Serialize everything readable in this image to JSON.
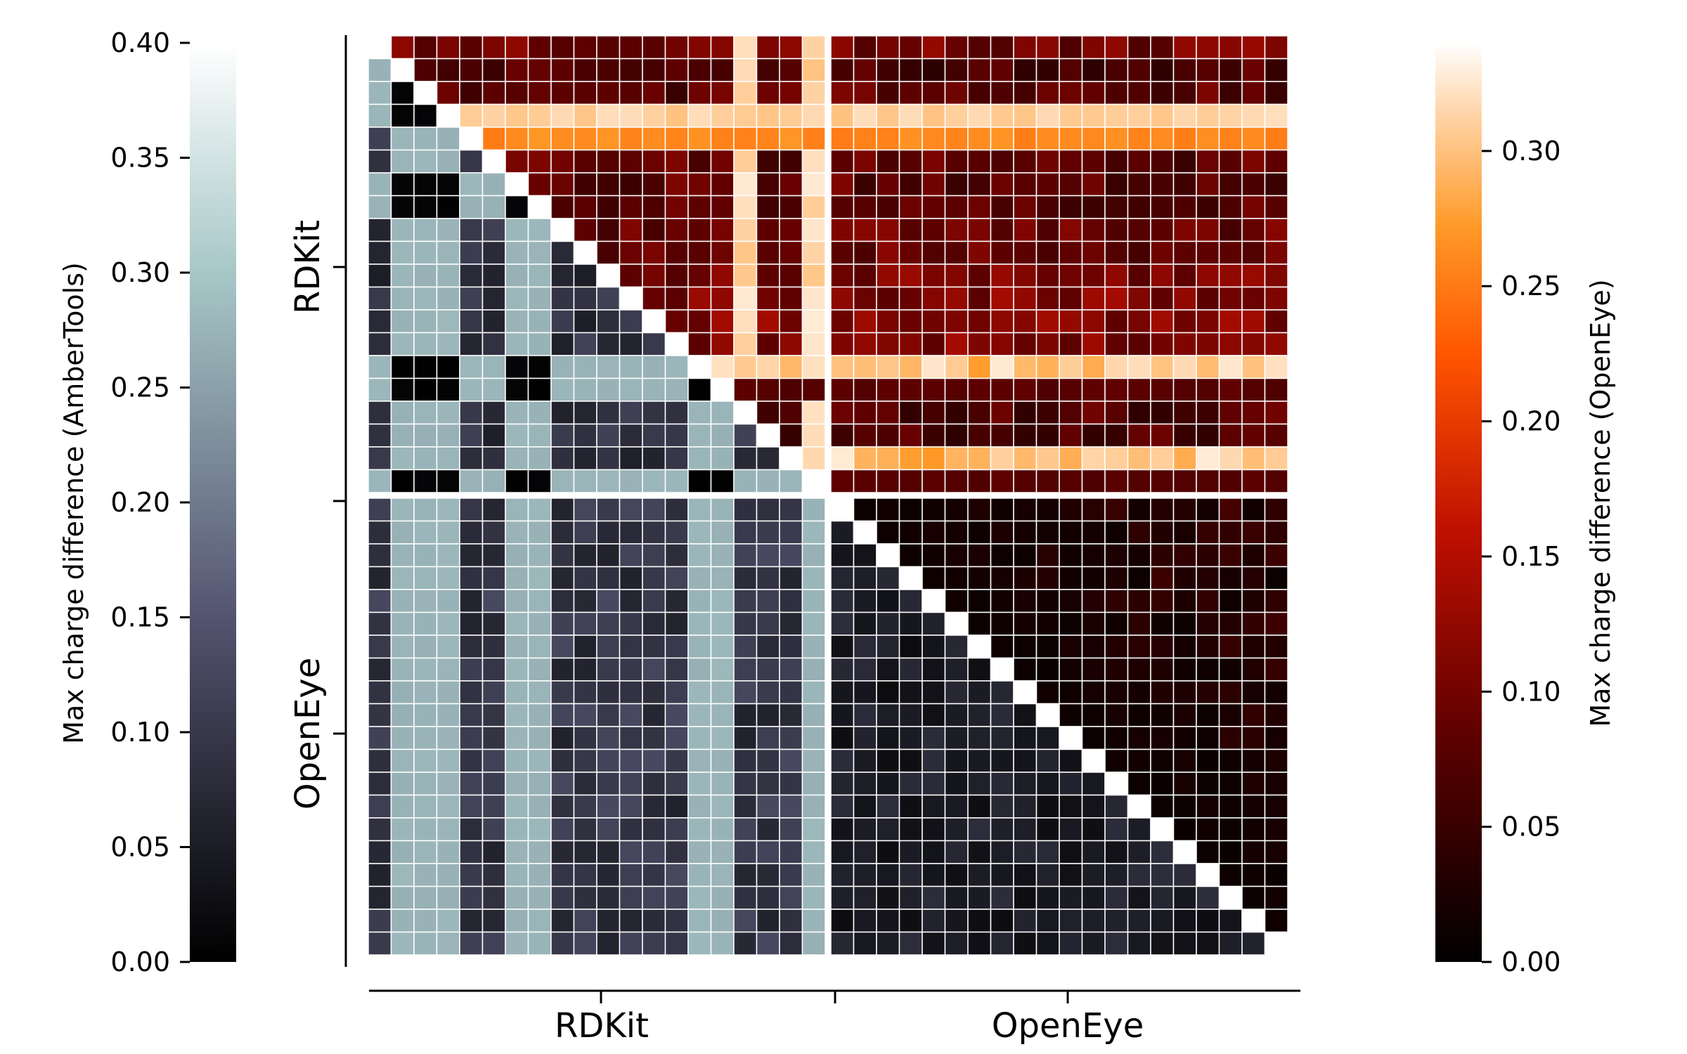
{
  "chart_data": {
    "type": "heatmap",
    "description_groups": [
      "RDKit",
      "OpenEye"
    ],
    "group_sizes": [
      20,
      20
    ],
    "x_group_labels": [
      "RDKit",
      "OpenEye"
    ],
    "y_group_labels": [
      "RDKit",
      "OpenEye"
    ],
    "lower_triangle_colorbar": {
      "label": "Max charge difference (AmberTools)",
      "ticks": [
        "0.00",
        "0.05",
        "0.10",
        "0.15",
        "0.20",
        "0.25",
        "0.30",
        "0.35",
        "0.40"
      ],
      "range": [
        0.0,
        0.4
      ],
      "colormap": "bone",
      "placement": "left"
    },
    "upper_triangle_colorbar": {
      "label": "Max charge difference (OpenEye)",
      "ticks": [
        "0.00",
        "0.05",
        "0.10",
        "0.15",
        "0.20",
        "0.25",
        "0.30"
      ],
      "range": [
        0.0,
        0.34
      ],
      "colormap": "gist_heat",
      "placement": "right"
    },
    "row_profiles_openeye_upper": [
      0.1,
      0.07,
      0.08,
      0.3,
      0.25,
      0.08,
      0.08,
      0.08,
      0.09,
      0.09,
      0.1,
      0.11,
      0.11,
      0.11,
      0.3,
      0.07,
      0.07,
      0.07,
      0.3
    ],
    "pattern_note_values": {
      "rdkit_outlier_rows_amber": [
        2,
        3,
        4,
        7,
        8,
        15,
        16,
        20
      ],
      "rdkit_outlier_rows_openeye": [
        3,
        4,
        15,
        19
      ]
    },
    "grid": false,
    "cell_separator_color": "#ffffff"
  },
  "colors": {
    "background": "#ffffff",
    "separator": "#ffffff",
    "axis": "#000000"
  }
}
